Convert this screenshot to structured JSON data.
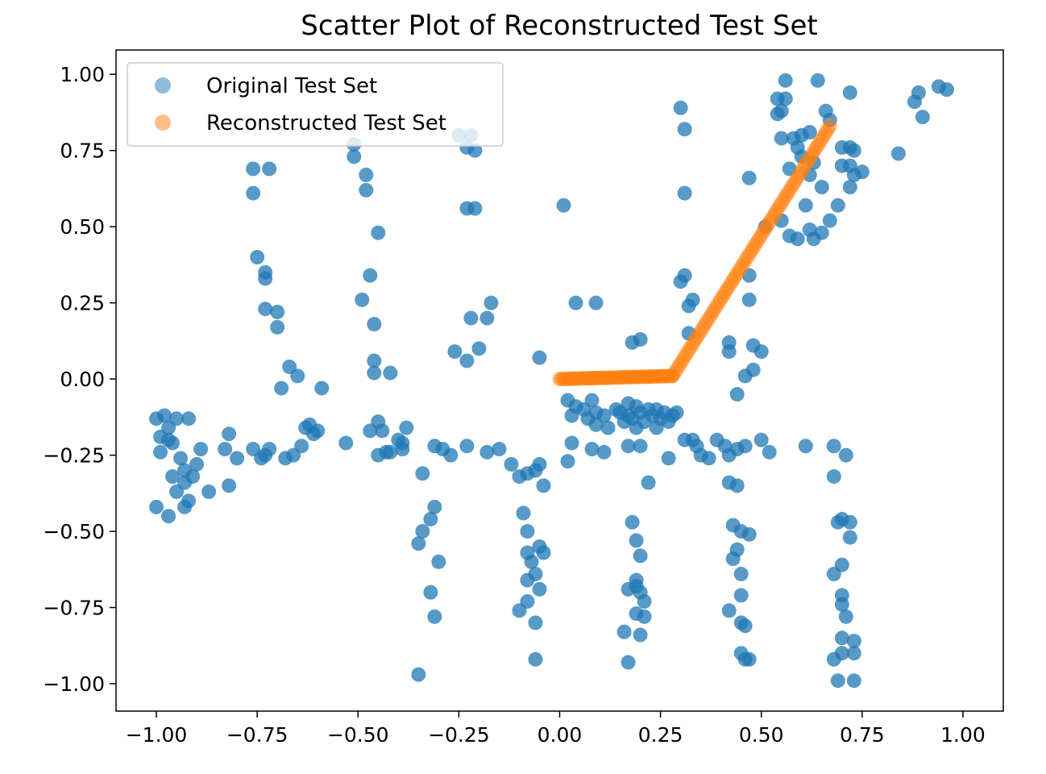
{
  "chart_data": {
    "type": "scatter",
    "title": "Scatter Plot of Reconstructed Test Set",
    "xlabel": "",
    "ylabel": "",
    "xlim": [
      -1.1,
      1.1
    ],
    "ylim": [
      -1.09,
      1.08
    ],
    "xticks": [
      -1.0,
      -0.75,
      -0.5,
      -0.25,
      0.0,
      0.25,
      0.5,
      0.75,
      1.0
    ],
    "xtick_labels": [
      "−1.00",
      "−0.75",
      "−0.50",
      "−0.25",
      "0.00",
      "0.25",
      "0.50",
      "0.75",
      "1.00"
    ],
    "yticks": [
      1.0,
      0.75,
      0.5,
      0.25,
      0.0,
      -0.25,
      -0.5,
      -0.75,
      -1.0
    ],
    "ytick_labels": [
      "1.00",
      "0.75",
      "0.50",
      "0.25",
      "0.00",
      "−0.25",
      "−0.50",
      "−0.75",
      "−1.00"
    ],
    "grid": false,
    "legend_position": "top-left",
    "series": [
      {
        "name": "Original Test Set",
        "color": "#1f77b4",
        "alpha": 0.75,
        "points": [
          [
            -1.0,
            -0.13
          ],
          [
            -0.99,
            -0.19
          ],
          [
            -0.98,
            -0.12
          ],
          [
            -0.97,
            -0.16
          ],
          [
            -0.96,
            -0.21
          ],
          [
            -0.99,
            -0.24
          ],
          [
            -0.97,
            -0.2
          ],
          [
            -0.95,
            -0.13
          ],
          [
            -0.92,
            -0.13
          ],
          [
            -0.96,
            -0.32
          ],
          [
            -0.94,
            -0.26
          ],
          [
            -0.93,
            -0.3
          ],
          [
            -0.93,
            -0.34
          ],
          [
            -0.91,
            -0.32
          ],
          [
            -0.95,
            -0.37
          ],
          [
            -0.93,
            -0.42
          ],
          [
            -0.92,
            -0.4
          ],
          [
            -0.97,
            -0.45
          ],
          [
            -1.0,
            -0.42
          ],
          [
            -0.9,
            -0.28
          ],
          [
            -0.89,
            -0.23
          ],
          [
            -0.87,
            -0.37
          ],
          [
            -0.83,
            -0.23
          ],
          [
            -0.82,
            -0.18
          ],
          [
            -0.8,
            -0.26
          ],
          [
            -0.82,
            -0.35
          ],
          [
            -0.76,
            -0.23
          ],
          [
            -0.74,
            -0.26
          ],
          [
            -0.73,
            -0.25
          ],
          [
            -0.72,
            -0.23
          ],
          [
            -0.68,
            -0.26
          ],
          [
            -0.66,
            -0.25
          ],
          [
            -0.64,
            -0.22
          ],
          [
            -0.63,
            -0.16
          ],
          [
            -0.61,
            -0.18
          ],
          [
            -0.6,
            -0.17
          ],
          [
            -0.62,
            -0.15
          ],
          [
            -0.53,
            -0.21
          ],
          [
            -0.76,
            0.69
          ],
          [
            -0.72,
            0.69
          ],
          [
            -0.76,
            0.61
          ],
          [
            -0.75,
            0.4
          ],
          [
            -0.73,
            0.35
          ],
          [
            -0.73,
            0.33
          ],
          [
            -0.73,
            0.23
          ],
          [
            -0.7,
            0.22
          ],
          [
            -0.7,
            0.17
          ],
          [
            -0.67,
            0.04
          ],
          [
            -0.65,
            0.01
          ],
          [
            -0.69,
            -0.03
          ],
          [
            -0.59,
            -0.03
          ],
          [
            -0.51,
            0.77
          ],
          [
            -0.51,
            0.73
          ],
          [
            -0.48,
            0.67
          ],
          [
            -0.48,
            0.62
          ],
          [
            -0.45,
            0.48
          ],
          [
            -0.47,
            0.34
          ],
          [
            -0.49,
            0.26
          ],
          [
            -0.46,
            0.18
          ],
          [
            -0.46,
            0.06
          ],
          [
            -0.46,
            0.02
          ],
          [
            -0.42,
            0.02
          ],
          [
            -0.47,
            -0.17
          ],
          [
            -0.45,
            -0.14
          ],
          [
            -0.44,
            -0.17
          ],
          [
            -0.45,
            -0.25
          ],
          [
            -0.43,
            -0.24
          ],
          [
            -0.42,
            -0.24
          ],
          [
            -0.4,
            -0.2
          ],
          [
            -0.39,
            -0.21
          ],
          [
            -0.38,
            -0.16
          ],
          [
            -0.39,
            -0.23
          ],
          [
            -0.31,
            -0.22
          ],
          [
            -0.29,
            -0.23
          ],
          [
            -0.27,
            -0.25
          ],
          [
            -0.23,
            -0.22
          ],
          [
            -0.34,
            -0.31
          ],
          [
            -0.31,
            -0.42
          ],
          [
            -0.32,
            -0.46
          ],
          [
            -0.34,
            -0.5
          ],
          [
            -0.35,
            -0.54
          ],
          [
            -0.3,
            -0.6
          ],
          [
            -0.32,
            -0.7
          ],
          [
            -0.31,
            -0.78
          ],
          [
            -0.35,
            -0.97
          ],
          [
            -0.25,
            0.8
          ],
          [
            -0.22,
            0.8
          ],
          [
            -0.23,
            0.76
          ],
          [
            -0.21,
            0.75
          ],
          [
            -0.23,
            0.56
          ],
          [
            -0.21,
            0.56
          ],
          [
            -0.22,
            0.2
          ],
          [
            -0.17,
            0.25
          ],
          [
            -0.18,
            0.2
          ],
          [
            -0.2,
            0.1
          ],
          [
            -0.23,
            0.06
          ],
          [
            -0.26,
            0.09
          ],
          [
            -0.18,
            -0.24
          ],
          [
            -0.15,
            -0.23
          ],
          [
            -0.12,
            -0.28
          ],
          [
            -0.1,
            -0.32
          ],
          [
            -0.08,
            -0.31
          ],
          [
            -0.06,
            -0.3
          ],
          [
            -0.05,
            -0.28
          ],
          [
            -0.04,
            -0.35
          ],
          [
            -0.05,
            0.07
          ],
          [
            -0.09,
            -0.44
          ],
          [
            -0.08,
            -0.5
          ],
          [
            -0.08,
            -0.57
          ],
          [
            -0.05,
            -0.55
          ],
          [
            -0.04,
            -0.57
          ],
          [
            -0.07,
            -0.6
          ],
          [
            -0.08,
            -0.66
          ],
          [
            -0.06,
            -0.64
          ],
          [
            -0.05,
            -0.69
          ],
          [
            -0.08,
            -0.73
          ],
          [
            -0.1,
            -0.76
          ],
          [
            -0.06,
            -0.8
          ],
          [
            -0.06,
            -0.92
          ],
          [
            0.01,
            0.57
          ],
          [
            0.04,
            0.25
          ],
          [
            0.09,
            0.25
          ],
          [
            0.02,
            -0.07
          ],
          [
            0.03,
            -0.12
          ],
          [
            0.04,
            -0.09
          ],
          [
            0.06,
            -0.1
          ],
          [
            0.07,
            -0.13
          ],
          [
            0.08,
            -0.07
          ],
          [
            0.09,
            -0.11
          ],
          [
            0.09,
            -0.15
          ],
          [
            0.11,
            -0.12
          ],
          [
            0.12,
            -0.16
          ],
          [
            0.14,
            -0.1
          ],
          [
            0.15,
            -0.11
          ],
          [
            0.16,
            -0.14
          ],
          [
            0.17,
            -0.08
          ],
          [
            0.17,
            -0.12
          ],
          [
            0.18,
            -0.13
          ],
          [
            0.19,
            -0.09
          ],
          [
            0.2,
            -0.11
          ],
          [
            0.21,
            -0.14
          ],
          [
            0.22,
            -0.1
          ],
          [
            0.23,
            -0.12
          ],
          [
            0.24,
            -0.1
          ],
          [
            0.25,
            -0.13
          ],
          [
            0.26,
            -0.11
          ],
          [
            0.27,
            -0.14
          ],
          [
            0.28,
            -0.12
          ],
          [
            0.29,
            -0.11
          ],
          [
            0.19,
            -0.16
          ],
          [
            0.24,
            -0.16
          ],
          [
            0.18,
            0.12
          ],
          [
            0.2,
            0.13
          ],
          [
            0.03,
            -0.21
          ],
          [
            0.02,
            -0.27
          ],
          [
            0.08,
            -0.23
          ],
          [
            0.11,
            -0.24
          ],
          [
            0.17,
            -0.22
          ],
          [
            0.2,
            -0.22
          ],
          [
            0.22,
            -0.34
          ],
          [
            0.27,
            -0.26
          ],
          [
            0.18,
            -0.47
          ],
          [
            0.19,
            -0.53
          ],
          [
            0.2,
            -0.58
          ],
          [
            0.19,
            -0.66
          ],
          [
            0.19,
            -0.68
          ],
          [
            0.17,
            -0.69
          ],
          [
            0.2,
            -0.7
          ],
          [
            0.21,
            -0.73
          ],
          [
            0.19,
            -0.77
          ],
          [
            0.21,
            -0.78
          ],
          [
            0.16,
            -0.83
          ],
          [
            0.2,
            -0.84
          ],
          [
            0.17,
            -0.93
          ],
          [
            0.3,
            0.89
          ],
          [
            0.31,
            0.82
          ],
          [
            0.31,
            0.61
          ],
          [
            0.31,
            0.34
          ],
          [
            0.3,
            0.32
          ],
          [
            0.33,
            0.26
          ],
          [
            0.32,
            0.24
          ],
          [
            0.32,
            0.15
          ],
          [
            0.31,
            -0.2
          ],
          [
            0.33,
            -0.2
          ],
          [
            0.34,
            -0.22
          ],
          [
            0.35,
            -0.25
          ],
          [
            0.37,
            -0.26
          ],
          [
            0.39,
            -0.2
          ],
          [
            0.41,
            -0.22
          ],
          [
            0.42,
            -0.25
          ],
          [
            0.44,
            -0.23
          ],
          [
            0.46,
            -0.22
          ],
          [
            0.5,
            -0.2
          ],
          [
            0.52,
            -0.24
          ],
          [
            0.42,
            0.12
          ],
          [
            0.42,
            0.09
          ],
          [
            0.47,
            0.34
          ],
          [
            0.47,
            0.26
          ],
          [
            0.48,
            0.11
          ],
          [
            0.5,
            0.09
          ],
          [
            0.48,
            0.03
          ],
          [
            0.46,
            0.01
          ],
          [
            0.44,
            -0.05
          ],
          [
            0.42,
            -0.34
          ],
          [
            0.44,
            -0.35
          ],
          [
            0.43,
            -0.48
          ],
          [
            0.45,
            -0.5
          ],
          [
            0.47,
            -0.51
          ],
          [
            0.44,
            -0.56
          ],
          [
            0.43,
            -0.59
          ],
          [
            0.45,
            -0.64
          ],
          [
            0.45,
            -0.71
          ],
          [
            0.42,
            -0.76
          ],
          [
            0.45,
            -0.8
          ],
          [
            0.46,
            -0.81
          ],
          [
            0.45,
            -0.9
          ],
          [
            0.46,
            -0.92
          ],
          [
            0.47,
            -0.92
          ],
          [
            0.54,
            0.92
          ],
          [
            0.55,
            0.88
          ],
          [
            0.56,
            0.98
          ],
          [
            0.56,
            0.92
          ],
          [
            0.54,
            0.87
          ],
          [
            0.55,
            0.79
          ],
          [
            0.58,
            0.79
          ],
          [
            0.6,
            0.8
          ],
          [
            0.62,
            0.81
          ],
          [
            0.59,
            0.76
          ],
          [
            0.6,
            0.73
          ],
          [
            0.63,
            0.71
          ],
          [
            0.62,
            0.67
          ],
          [
            0.57,
            0.69
          ],
          [
            0.65,
            0.63
          ],
          [
            0.64,
            0.98
          ],
          [
            0.66,
            0.88
          ],
          [
            0.67,
            0.85
          ],
          [
            0.7,
            0.76
          ],
          [
            0.72,
            0.76
          ],
          [
            0.73,
            0.75
          ],
          [
            0.72,
            0.7
          ],
          [
            0.7,
            0.7
          ],
          [
            0.73,
            0.67
          ],
          [
            0.75,
            0.68
          ],
          [
            0.72,
            0.63
          ],
          [
            0.69,
            0.57
          ],
          [
            0.67,
            0.52
          ],
          [
            0.72,
            0.94
          ],
          [
            0.47,
            0.66
          ],
          [
            0.51,
            0.5
          ],
          [
            0.55,
            0.52
          ],
          [
            0.57,
            0.47
          ],
          [
            0.59,
            0.46
          ],
          [
            0.62,
            0.49
          ],
          [
            0.63,
            0.46
          ],
          [
            0.65,
            0.48
          ],
          [
            0.61,
            0.57
          ],
          [
            0.84,
            0.74
          ],
          [
            0.88,
            0.91
          ],
          [
            0.89,
            0.94
          ],
          [
            0.9,
            0.86
          ],
          [
            0.94,
            0.96
          ],
          [
            0.96,
            0.95
          ],
          [
            0.61,
            -0.22
          ],
          [
            0.68,
            -0.22
          ],
          [
            0.71,
            -0.25
          ],
          [
            0.68,
            -0.32
          ],
          [
            0.69,
            -0.47
          ],
          [
            0.7,
            -0.46
          ],
          [
            0.72,
            -0.47
          ],
          [
            0.72,
            -0.52
          ],
          [
            0.7,
            -0.61
          ],
          [
            0.68,
            -0.64
          ],
          [
            0.7,
            -0.71
          ],
          [
            0.7,
            -0.74
          ],
          [
            0.71,
            -0.78
          ],
          [
            0.7,
            -0.85
          ],
          [
            0.73,
            -0.86
          ],
          [
            0.73,
            -0.9
          ],
          [
            0.68,
            -0.92
          ],
          [
            0.7,
            -0.9
          ],
          [
            0.69,
            -0.99
          ],
          [
            0.73,
            -0.99
          ]
        ]
      },
      {
        "name": "Reconstructed Test Set",
        "color": "#ff7f0e",
        "alpha": 0.5,
        "segments": [
          {
            "x_start": 0.0,
            "x_end": 0.28,
            "y_start": 0.0,
            "y_end": 0.01,
            "count": 60
          },
          {
            "x_start": 0.28,
            "x_end": 0.67,
            "y_start": 0.01,
            "y_end": 0.83,
            "count": 70
          }
        ]
      }
    ]
  }
}
